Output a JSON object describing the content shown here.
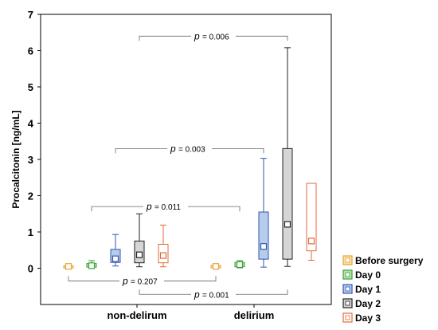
{
  "chart_data": {
    "type": "box",
    "title": "",
    "xlabel": "",
    "ylabel": "Procalcitonin [ng/mL]",
    "ylim": [
      -1,
      7
    ],
    "yticks": [
      0,
      1,
      2,
      3,
      4,
      5,
      6,
      7
    ],
    "categories": [
      "non-delirum",
      "delirium"
    ],
    "series": [
      {
        "name": "Before surgery",
        "color": "#e8a13a",
        "fill": "#f7e3a6",
        "boxes": [
          {
            "group": "non-delirum",
            "min": 0.01,
            "q1": 0.02,
            "median": 0.05,
            "mean": 0.05,
            "q3": 0.07,
            "max": 0.09
          },
          {
            "group": "delirium",
            "min": 0.01,
            "q1": 0.02,
            "median": 0.05,
            "mean": 0.05,
            "q3": 0.08,
            "max": 0.11
          }
        ]
      },
      {
        "name": "Day 0",
        "color": "#3aa035",
        "fill": "#b8e6b3",
        "boxes": [
          {
            "group": "non-delirum",
            "min": 0.0,
            "q1": 0.03,
            "median": 0.08,
            "mean": 0.07,
            "q3": 0.13,
            "max": 0.21
          },
          {
            "group": "delirium",
            "min": 0.01,
            "q1": 0.04,
            "median": 0.1,
            "mean": 0.1,
            "q3": 0.16,
            "max": 0.21
          }
        ]
      },
      {
        "name": "Day 1",
        "color": "#3355b5",
        "fill": "#b5cdea",
        "boxes": [
          {
            "group": "non-delirum",
            "min": 0.06,
            "q1": 0.16,
            "median": 0.25,
            "mean": 0.26,
            "q3": 0.52,
            "max": 0.93
          },
          {
            "group": "delirium",
            "min": 0.03,
            "q1": 0.25,
            "median": 0.6,
            "mean": 0.6,
            "q3": 1.55,
            "max": 3.03
          }
        ]
      },
      {
        "name": "Day 2",
        "color": "#222222",
        "fill": "#d6d6d6",
        "boxes": [
          {
            "group": "non-delirum",
            "min": 0.04,
            "q1": 0.15,
            "median": 0.37,
            "mean": 0.37,
            "q3": 0.75,
            "max": 1.5
          },
          {
            "group": "delirium",
            "min": 0.05,
            "q1": 0.25,
            "median": 1.2,
            "mean": 1.21,
            "q3": 3.3,
            "max": 6.08
          }
        ]
      },
      {
        "name": "Day 3",
        "color": "#e06a3a",
        "fill": "#ffffff",
        "boxes": [
          {
            "group": "non-delirum",
            "min": 0.04,
            "q1": 0.15,
            "median": 0.35,
            "mean": 0.35,
            "q3": 0.66,
            "max": 1.19
          },
          {
            "group": "delirium",
            "min": 0.22,
            "q1": 0.48,
            "median": 0.75,
            "mean": 0.75,
            "q3": 2.34,
            "max": 2.34
          }
        ]
      }
    ],
    "annotations": [
      {
        "label": "p",
        "value": "= 0.006"
      },
      {
        "label": "p",
        "value": "= 0.003"
      },
      {
        "label": "p",
        "value": "= 0.011"
      },
      {
        "label": "p",
        "value": "= 0.207"
      },
      {
        "label": "p",
        "value": "= 0.001"
      }
    ],
    "legend_position": "right-bottom"
  }
}
